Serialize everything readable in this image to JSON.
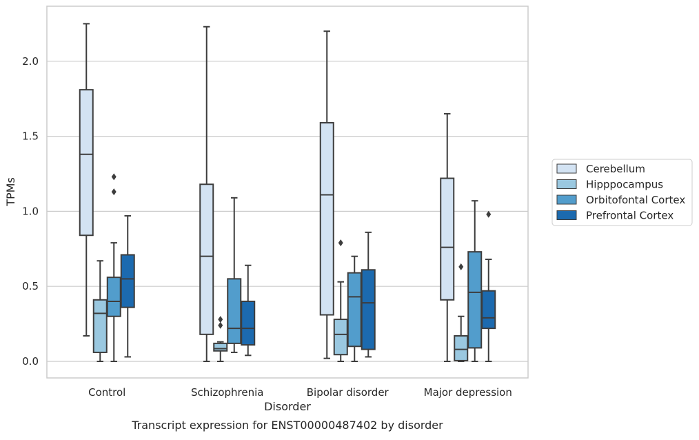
{
  "chart_data": {
    "type": "boxplot",
    "xlabel": "Disorder",
    "ylabel": "TPMs",
    "caption": "Transcript expression for ENST00000487402 by disorder",
    "ylim": [
      -0.11,
      2.37
    ],
    "yticks": [
      "0.0",
      "0.5",
      "1.0",
      "1.5",
      "2.0"
    ],
    "ytick_values": [
      0,
      0.5,
      1.0,
      1.5,
      2.0
    ],
    "grid": "horizontal",
    "legend_placement": "right",
    "categories": [
      "Control",
      "Schizophrenia",
      "Bipolar disorder",
      "Major depression"
    ],
    "series": [
      {
        "name": "Cerebellum",
        "color": "#d3e3f3",
        "boxes": [
          {
            "whislo": 0.17,
            "q1": 0.84,
            "med": 1.38,
            "q3": 1.81,
            "whishi": 2.25,
            "fliers": []
          },
          {
            "whislo": 0.0,
            "q1": 0.18,
            "med": 0.7,
            "q3": 1.18,
            "whishi": 2.23,
            "fliers": []
          },
          {
            "whislo": 0.02,
            "q1": 0.31,
            "med": 1.11,
            "q3": 1.59,
            "whishi": 2.2,
            "fliers": []
          },
          {
            "whislo": 0.0,
            "q1": 0.41,
            "med": 0.76,
            "q3": 1.22,
            "whishi": 1.65,
            "fliers": []
          }
        ]
      },
      {
        "name": "Hipppocampus",
        "color": "#9ac8e0",
        "boxes": [
          {
            "whislo": 0.0,
            "q1": 0.06,
            "med": 0.32,
            "q3": 0.41,
            "whishi": 0.67,
            "fliers": []
          },
          {
            "whislo": 0.0,
            "q1": 0.07,
            "med": 0.085,
            "q3": 0.12,
            "whishi": 0.13,
            "fliers": [
              0.24,
              0.28
            ]
          },
          {
            "whislo": 0.0,
            "q1": 0.045,
            "med": 0.18,
            "q3": 0.28,
            "whishi": 0.53,
            "fliers": [
              0.79
            ]
          },
          {
            "whislo": 0.0,
            "q1": 0.005,
            "med": 0.08,
            "q3": 0.17,
            "whishi": 0.3,
            "fliers": [
              0.63
            ]
          }
        ]
      },
      {
        "name": "Orbitofontal Cortex",
        "color": "#529dcc",
        "boxes": [
          {
            "whislo": 0.0,
            "q1": 0.3,
            "med": 0.4,
            "q3": 0.56,
            "whishi": 0.79,
            "fliers": [
              1.13,
              1.23
            ]
          },
          {
            "whislo": 0.06,
            "q1": 0.12,
            "med": 0.22,
            "q3": 0.55,
            "whishi": 1.09,
            "fliers": []
          },
          {
            "whislo": 0.0,
            "q1": 0.1,
            "med": 0.43,
            "q3": 0.59,
            "whishi": 0.7,
            "fliers": []
          },
          {
            "whislo": 0.0,
            "q1": 0.09,
            "med": 0.46,
            "q3": 0.73,
            "whishi": 1.07,
            "fliers": []
          }
        ]
      },
      {
        "name": "Prefrontal Cortex",
        "color": "#1c6aaf",
        "boxes": [
          {
            "whislo": 0.03,
            "q1": 0.36,
            "med": 0.55,
            "q3": 0.71,
            "whishi": 0.97,
            "fliers": []
          },
          {
            "whislo": 0.04,
            "q1": 0.11,
            "med": 0.22,
            "q3": 0.4,
            "whishi": 0.64,
            "fliers": []
          },
          {
            "whislo": 0.03,
            "q1": 0.08,
            "med": 0.39,
            "q3": 0.61,
            "whishi": 0.86,
            "fliers": []
          },
          {
            "whislo": 0.0,
            "q1": 0.22,
            "med": 0.29,
            "q3": 0.47,
            "whishi": 0.68,
            "fliers": [
              0.98
            ]
          }
        ]
      }
    ]
  }
}
